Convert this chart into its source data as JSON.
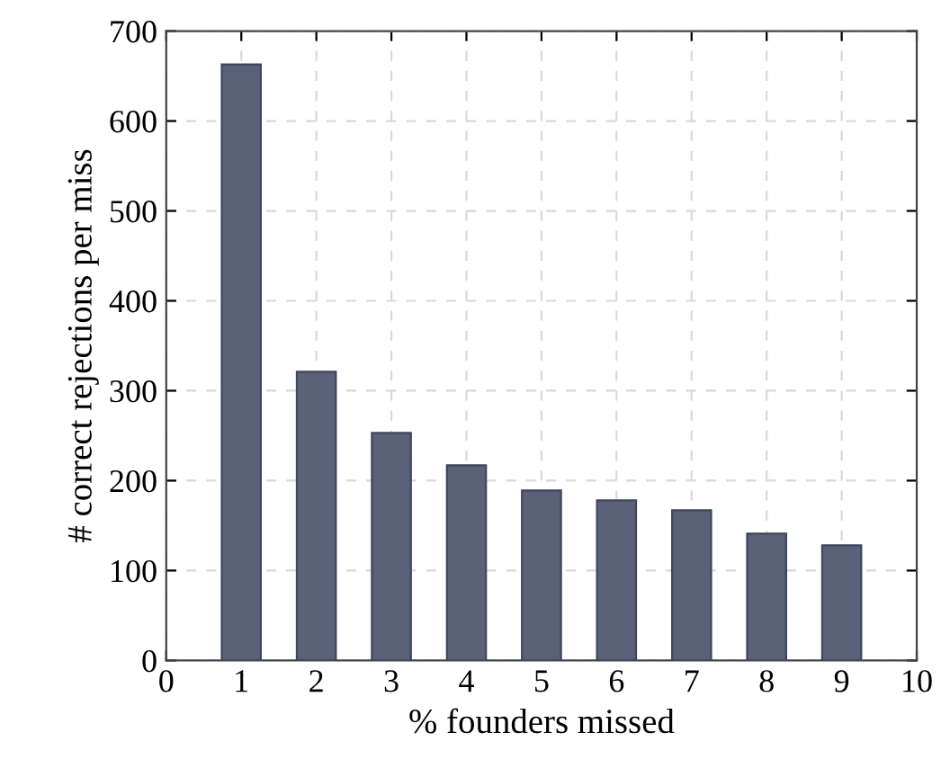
{
  "chart_data": {
    "type": "bar",
    "xlabel": "% founders missed",
    "ylabel": "# correct rejections per miss",
    "x": [
      1,
      2,
      3,
      4,
      5,
      6,
      7,
      8,
      9
    ],
    "values": [
      663,
      321,
      253,
      217,
      189,
      178,
      167,
      141,
      128
    ],
    "color": "#5a6178",
    "xlim": [
      0,
      10
    ],
    "xticks": [
      0,
      1,
      2,
      3,
      4,
      5,
      6,
      7,
      8,
      9,
      10
    ],
    "ylim": [
      0,
      700
    ],
    "yticks": [
      0,
      100,
      200,
      300,
      400,
      500,
      600,
      700
    ],
    "grid": true
  }
}
